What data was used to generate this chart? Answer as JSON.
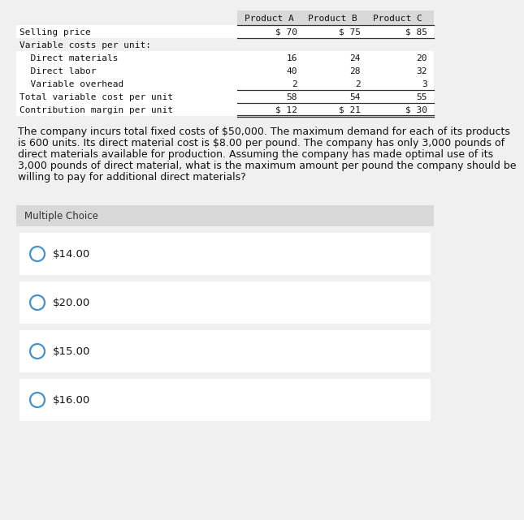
{
  "bg_color": "#f0f0f0",
  "white": "#ffffff",
  "table_header_bg": "#d8d8d8",
  "header_row": [
    "",
    "Product A",
    "Product B",
    "Product C"
  ],
  "rows": [
    {
      "label": "Selling price",
      "values": [
        "$ 70",
        "$ 75",
        "$ 85"
      ],
      "indent": 0,
      "top_line": true,
      "bottom_line": true,
      "double_bottom": false
    },
    {
      "label": "Variable costs per unit:",
      "values": [
        "",
        "",
        ""
      ],
      "indent": 0,
      "top_line": false,
      "bottom_line": false,
      "double_bottom": false
    },
    {
      "label": "  Direct materials",
      "values": [
        "16",
        "24",
        "20"
      ],
      "indent": 1,
      "top_line": false,
      "bottom_line": false,
      "double_bottom": false
    },
    {
      "label": "  Direct labor",
      "values": [
        "40",
        "28",
        "32"
      ],
      "indent": 1,
      "top_line": false,
      "bottom_line": false,
      "double_bottom": false
    },
    {
      "label": "  Variable overhead",
      "values": [
        "2",
        "2",
        "3"
      ],
      "indent": 1,
      "top_line": false,
      "bottom_line": false,
      "double_bottom": false
    },
    {
      "label": "Total variable cost per unit",
      "values": [
        "58",
        "54",
        "55"
      ],
      "indent": 0,
      "top_line": true,
      "bottom_line": true,
      "double_bottom": false
    },
    {
      "label": "Contribution margin per unit",
      "values": [
        "$ 12",
        "$ 21",
        "$ 30"
      ],
      "indent": 0,
      "top_line": false,
      "bottom_line": true,
      "double_bottom": true
    }
  ],
  "paragraph": "The company incurs total fixed costs of $50,000. The maximum demand for each of its products\nis 600 units. Its direct material cost is $8.00 per pound. The company has only 3,000 pounds of\ndirect materials available for production. Assuming the company has made optimal use of its\n3,000 pounds of direct material, what is the maximum amount per pound the company should be\nwilling to pay for additional direct materials?",
  "multiple_choice_label": "Multiple Choice",
  "choices": [
    "$14.00",
    "$20.00",
    "$15.00",
    "$16.00"
  ],
  "circle_color": "#4a90c4",
  "font_family": "DejaVu Sans Mono",
  "text_font_family": "DejaVu Sans",
  "font_size_header": 8.0,
  "font_size_table": 8.0,
  "font_size_para": 9.0,
  "font_size_choice": 9.5,
  "font_size_mc_label": 8.5
}
